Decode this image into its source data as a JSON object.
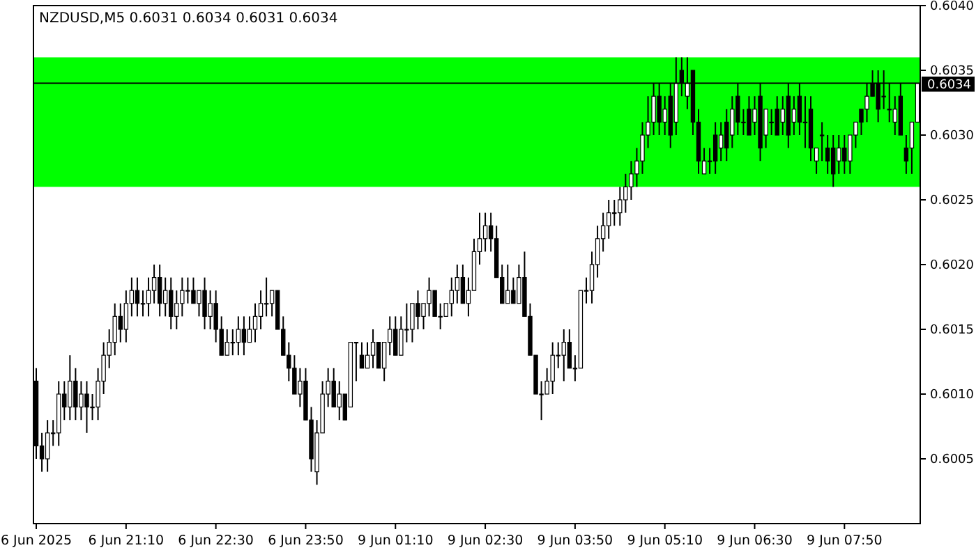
{
  "chart_data": {
    "type": "candlestick",
    "title": "NZDUSD,M5  0.6031 0.6034 0.6031 0.6034",
    "categories": [
      "6 Jun 2025",
      null,
      null,
      null,
      null,
      null,
      null,
      null,
      null,
      null,
      null,
      null,
      null,
      null,
      null,
      null,
      "6 Jun 21:10",
      null,
      null,
      null,
      null,
      null,
      null,
      null,
      null,
      null,
      null,
      null,
      null,
      null,
      null,
      null,
      "6 Jun 22:30",
      null,
      null,
      null,
      null,
      null,
      null,
      null,
      null,
      null,
      null,
      null,
      null,
      null,
      null,
      null,
      "6 Jun 23:50",
      null,
      null,
      null,
      null,
      null,
      null,
      null,
      null,
      null,
      null,
      null,
      null,
      null,
      null,
      null,
      "9 Jun 01:10",
      null,
      null,
      null,
      null,
      null,
      null,
      null,
      null,
      null,
      null,
      null,
      null,
      null,
      null,
      null,
      "9 Jun 02:30",
      null,
      null,
      null,
      null,
      null,
      null,
      null,
      null,
      null,
      null,
      null,
      null,
      null,
      null,
      null,
      "9 Jun 03:50",
      null,
      null,
      null,
      null,
      null,
      null,
      null,
      null,
      null,
      null,
      null,
      null,
      null,
      null,
      null,
      "9 Jun 05:10",
      null,
      null,
      null,
      null,
      null,
      null,
      null,
      null,
      null,
      null,
      null,
      null,
      null,
      null,
      null,
      "9 Jun 06:30",
      null,
      null,
      null,
      null,
      null,
      null,
      null,
      null,
      null,
      null,
      null,
      null,
      null,
      null,
      null,
      "9 Jun 07:50",
      null,
      null,
      null,
      null,
      null,
      null,
      null,
      null,
      null,
      null,
      null,
      null,
      null
    ],
    "ohlc": [
      [
        0.6011,
        0.6012,
        0.6005,
        0.6006
      ],
      [
        0.6006,
        0.6007,
        0.6004,
        0.6005
      ],
      [
        0.6005,
        0.6008,
        0.6004,
        0.6007
      ],
      [
        0.6007,
        0.6008,
        0.6006,
        0.6007
      ],
      [
        0.6007,
        0.6011,
        0.6006,
        0.601
      ],
      [
        0.601,
        0.6011,
        0.6008,
        0.6009
      ],
      [
        0.6009,
        0.6013,
        0.6008,
        0.6011
      ],
      [
        0.6011,
        0.6012,
        0.6008,
        0.6009
      ],
      [
        0.6009,
        0.6011,
        0.6008,
        0.601
      ],
      [
        0.601,
        0.6011,
        0.6007,
        0.6009
      ],
      [
        0.6009,
        0.601,
        0.6008,
        0.6009
      ],
      [
        0.6009,
        0.6012,
        0.6008,
        0.6011
      ],
      [
        0.6011,
        0.6014,
        0.601,
        0.6013
      ],
      [
        0.6013,
        0.6015,
        0.6012,
        0.6014
      ],
      [
        0.6014,
        0.6017,
        0.6013,
        0.6016
      ],
      [
        0.6016,
        0.6017,
        0.6014,
        0.6015
      ],
      [
        0.6015,
        0.6018,
        0.6014,
        0.6017
      ],
      [
        0.6017,
        0.6019,
        0.6016,
        0.6018
      ],
      [
        0.6018,
        0.6019,
        0.6016,
        0.6017
      ],
      [
        0.6017,
        0.6018,
        0.6016,
        0.6017
      ],
      [
        0.6017,
        0.6019,
        0.6016,
        0.6018
      ],
      [
        0.6018,
        0.602,
        0.6017,
        0.6019
      ],
      [
        0.6019,
        0.602,
        0.6016,
        0.6017
      ],
      [
        0.6017,
        0.6019,
        0.6016,
        0.6018
      ],
      [
        0.6018,
        0.6019,
        0.6015,
        0.6016
      ],
      [
        0.6016,
        0.6018,
        0.6015,
        0.6017
      ],
      [
        0.6017,
        0.6019,
        0.6016,
        0.6018
      ],
      [
        0.6018,
        0.6019,
        0.6017,
        0.6018
      ],
      [
        0.6018,
        0.6019,
        0.6017,
        0.6017
      ],
      [
        0.6017,
        0.6018,
        0.6016,
        0.6018
      ],
      [
        0.6018,
        0.6019,
        0.6015,
        0.6016
      ],
      [
        0.6016,
        0.6018,
        0.6015,
        0.6017
      ],
      [
        0.6017,
        0.6018,
        0.6014,
        0.6015
      ],
      [
        0.6015,
        0.6016,
        0.6013,
        0.6013
      ],
      [
        0.6013,
        0.6015,
        0.6013,
        0.6014
      ],
      [
        0.6014,
        0.6015,
        0.6013,
        0.6014
      ],
      [
        0.6014,
        0.6016,
        0.6013,
        0.6015
      ],
      [
        0.6015,
        0.6016,
        0.6013,
        0.6014
      ],
      [
        0.6014,
        0.6016,
        0.6014,
        0.6015
      ],
      [
        0.6015,
        0.6017,
        0.6014,
        0.6016
      ],
      [
        0.6016,
        0.6018,
        0.6015,
        0.6017
      ],
      [
        0.6017,
        0.6019,
        0.6016,
        0.6017
      ],
      [
        0.6017,
        0.6018,
        0.6016,
        0.6018
      ],
      [
        0.6018,
        0.6018,
        0.6015,
        0.6015
      ],
      [
        0.6015,
        0.6016,
        0.6013,
        0.6013
      ],
      [
        0.6013,
        0.6014,
        0.6011,
        0.6012
      ],
      [
        0.6012,
        0.6013,
        0.601,
        0.601
      ],
      [
        0.601,
        0.6012,
        0.6009,
        0.6011
      ],
      [
        0.6011,
        0.6012,
        0.6008,
        0.6008
      ],
      [
        0.6008,
        0.6009,
        0.6004,
        0.6005
      ],
      [
        0.6004,
        0.6008,
        0.6003,
        0.6007
      ],
      [
        0.6007,
        0.6011,
        0.6007,
        0.601
      ],
      [
        0.601,
        0.6012,
        0.6009,
        0.6011
      ],
      [
        0.6011,
        0.6012,
        0.6009,
        0.6009
      ],
      [
        0.6009,
        0.6011,
        0.6008,
        0.601
      ],
      [
        0.601,
        0.601,
        0.6008,
        0.6008
      ],
      [
        0.6009,
        0.6014,
        0.6009,
        0.6014
      ],
      [
        0.6014,
        0.6014,
        0.6011,
        0.6014
      ],
      [
        0.6013,
        0.6014,
        0.6012,
        0.6012
      ],
      [
        0.6012,
        0.6014,
        0.6012,
        0.6013
      ],
      [
        0.6013,
        0.6015,
        0.6012,
        0.6014
      ],
      [
        0.6014,
        0.6014,
        0.6012,
        0.6012
      ],
      [
        0.6012,
        0.6014,
        0.6011,
        0.6014
      ],
      [
        0.6014,
        0.6016,
        0.6013,
        0.6015
      ],
      [
        0.6015,
        0.6016,
        0.6013,
        0.6013
      ],
      [
        0.6013,
        0.6016,
        0.6013,
        0.6015
      ],
      [
        0.6015,
        0.6017,
        0.6014,
        0.6015
      ],
      [
        0.6015,
        0.6017,
        0.6014,
        0.6017
      ],
      [
        0.6017,
        0.6018,
        0.6015,
        0.6016
      ],
      [
        0.6016,
        0.6017,
        0.6015,
        0.6017
      ],
      [
        0.6017,
        0.6019,
        0.6016,
        0.6018
      ],
      [
        0.6018,
        0.6018,
        0.6016,
        0.6016
      ],
      [
        0.6016,
        0.6017,
        0.6015,
        0.6016
      ],
      [
        0.6016,
        0.6017,
        0.6016,
        0.6017
      ],
      [
        0.6017,
        0.6019,
        0.6016,
        0.6018
      ],
      [
        0.6018,
        0.602,
        0.6017,
        0.6019
      ],
      [
        0.6019,
        0.602,
        0.6017,
        0.6017
      ],
      [
        0.6017,
        0.6019,
        0.6016,
        0.6018
      ],
      [
        0.6018,
        0.6022,
        0.6018,
        0.6021
      ],
      [
        0.6021,
        0.6024,
        0.602,
        0.6022
      ],
      [
        0.6022,
        0.6024,
        0.6021,
        0.6023
      ],
      [
        0.6023,
        0.6024,
        0.6021,
        0.6022
      ],
      [
        0.6022,
        0.6023,
        0.6019,
        0.6019
      ],
      [
        0.6019,
        0.602,
        0.6017,
        0.6017
      ],
      [
        0.6017,
        0.602,
        0.6017,
        0.6018
      ],
      [
        0.6018,
        0.6019,
        0.6017,
        0.6017
      ],
      [
        0.6017,
        0.602,
        0.6017,
        0.6019
      ],
      [
        0.6019,
        0.6021,
        0.6016,
        0.6016
      ],
      [
        0.6016,
        0.6017,
        0.6013,
        0.6013
      ],
      [
        0.6013,
        0.6013,
        0.601,
        0.601
      ],
      [
        0.601,
        0.6011,
        0.6008,
        0.601
      ],
      [
        0.601,
        0.6012,
        0.601,
        0.6011
      ],
      [
        0.6011,
        0.6014,
        0.601,
        0.6013
      ],
      [
        0.6013,
        0.6014,
        0.6012,
        0.6013
      ],
      [
        0.6013,
        0.6015,
        0.6011,
        0.6014
      ],
      [
        0.6014,
        0.6015,
        0.6012,
        0.6012
      ],
      [
        0.6012,
        0.6013,
        0.6011,
        0.6012
      ],
      [
        0.6012,
        0.6018,
        0.6012,
        0.6018
      ],
      [
        0.6018,
        0.6019,
        0.6017,
        0.6018
      ],
      [
        0.6018,
        0.6021,
        0.6017,
        0.602
      ],
      [
        0.602,
        0.6023,
        0.6019,
        0.6022
      ],
      [
        0.6022,
        0.6024,
        0.6021,
        0.6023
      ],
      [
        0.6023,
        0.6025,
        0.6022,
        0.6024
      ],
      [
        0.6024,
        0.6025,
        0.6023,
        0.6024
      ],
      [
        0.6024,
        0.6026,
        0.6023,
        0.6025
      ],
      [
        0.6025,
        0.6027,
        0.6024,
        0.6026
      ],
      [
        0.6026,
        0.6028,
        0.6025,
        0.6027
      ],
      [
        0.6027,
        0.6029,
        0.6026,
        0.6028
      ],
      [
        0.6028,
        0.6031,
        0.6027,
        0.603
      ],
      [
        0.603,
        0.6033,
        0.6029,
        0.6031
      ],
      [
        0.6031,
        0.6034,
        0.603,
        0.6033
      ],
      [
        0.6033,
        0.6034,
        0.603,
        0.6031
      ],
      [
        0.6031,
        0.6033,
        0.603,
        0.6032
      ],
      [
        0.6033,
        0.6034,
        0.6029,
        0.603
      ],
      [
        0.6031,
        0.6036,
        0.603,
        0.6034
      ],
      [
        0.6035,
        0.6036,
        0.6033,
        0.6034
      ],
      [
        0.6033,
        0.6036,
        0.6032,
        0.6034
      ],
      [
        0.6035,
        0.6035,
        0.603,
        0.6031
      ],
      [
        0.6031,
        0.6032,
        0.6027,
        0.6028
      ],
      [
        0.6027,
        0.6029,
        0.6027,
        0.6028
      ],
      [
        0.6028,
        0.6029,
        0.6027,
        0.6028
      ],
      [
        0.603,
        0.6031,
        0.6027,
        0.6028
      ],
      [
        0.6029,
        0.6031,
        0.6028,
        0.603
      ],
      [
        0.6031,
        0.6032,
        0.6028,
        0.6029
      ],
      [
        0.603,
        0.6033,
        0.6029,
        0.6032
      ],
      [
        0.6033,
        0.6034,
        0.603,
        0.6031
      ],
      [
        0.6031,
        0.6032,
        0.603,
        0.6031
      ],
      [
        0.6032,
        0.6033,
        0.603,
        0.603
      ],
      [
        0.6031,
        0.6033,
        0.603,
        0.6032
      ],
      [
        0.6033,
        0.6034,
        0.6028,
        0.6029
      ],
      [
        0.603,
        0.6032,
        0.6029,
        0.6032
      ],
      [
        0.6031,
        0.6032,
        0.603,
        0.6031
      ],
      [
        0.6032,
        0.6033,
        0.603,
        0.603
      ],
      [
        0.6031,
        0.6033,
        0.603,
        0.6032
      ],
      [
        0.6033,
        0.6034,
        0.6029,
        0.603
      ],
      [
        0.6031,
        0.6033,
        0.603,
        0.6032
      ],
      [
        0.6033,
        0.6034,
        0.603,
        0.6031
      ],
      [
        0.6031,
        0.6033,
        0.6029,
        0.6031
      ],
      [
        0.6032,
        0.6033,
        0.6028,
        0.6029
      ],
      [
        0.6028,
        0.6029,
        0.6027,
        0.6029
      ],
      [
        0.603,
        0.6031,
        0.6028,
        0.603
      ],
      [
        0.6029,
        0.603,
        0.6027,
        0.6028
      ],
      [
        0.6029,
        0.603,
        0.6026,
        0.6027
      ],
      [
        0.6028,
        0.603,
        0.6027,
        0.6029
      ],
      [
        0.6029,
        0.603,
        0.6027,
        0.6028
      ],
      [
        0.6028,
        0.603,
        0.6027,
        0.603
      ],
      [
        0.603,
        0.6031,
        0.6029,
        0.6031
      ],
      [
        0.6032,
        0.6032,
        0.603,
        0.6031
      ],
      [
        0.6032,
        0.6034,
        0.6031,
        0.6033
      ],
      [
        0.6034,
        0.6035,
        0.6033,
        0.6033
      ],
      [
        0.6034,
        0.6035,
        0.6031,
        0.6032
      ],
      [
        0.6033,
        0.6035,
        0.6032,
        0.6033
      ],
      [
        0.6032,
        0.6034,
        0.6031,
        0.6032
      ],
      [
        0.6031,
        0.6033,
        0.603,
        0.6032
      ],
      [
        0.6033,
        0.6034,
        0.603,
        0.603
      ],
      [
        0.6029,
        0.603,
        0.6027,
        0.6028
      ],
      [
        0.6029,
        0.6031,
        0.6027,
        0.6031
      ],
      [
        0.6031,
        0.6034,
        0.6031,
        0.6034
      ]
    ],
    "ylim": [
      0.6,
      0.604
    ],
    "yticks": [
      {
        "value": 0.6005,
        "label": "0.6005"
      },
      {
        "value": 0.601,
        "label": "0.6010"
      },
      {
        "value": 0.6015,
        "label": "0.6015"
      },
      {
        "value": 0.602,
        "label": "0.6020"
      },
      {
        "value": 0.6025,
        "label": "0.6025"
      },
      {
        "value": 0.603,
        "label": "0.6030"
      },
      {
        "value": 0.6035,
        "label": "0.6035"
      },
      {
        "value": 0.604,
        "label": "0.6040"
      }
    ],
    "ref_lines": [
      {
        "axis": "y",
        "value": 0.6034,
        "label": "0.6034",
        "color": "#000000"
      }
    ],
    "bands": [
      {
        "axis": "y",
        "from": 0.6026,
        "to": 0.6036,
        "color": "#00ff00"
      }
    ]
  }
}
